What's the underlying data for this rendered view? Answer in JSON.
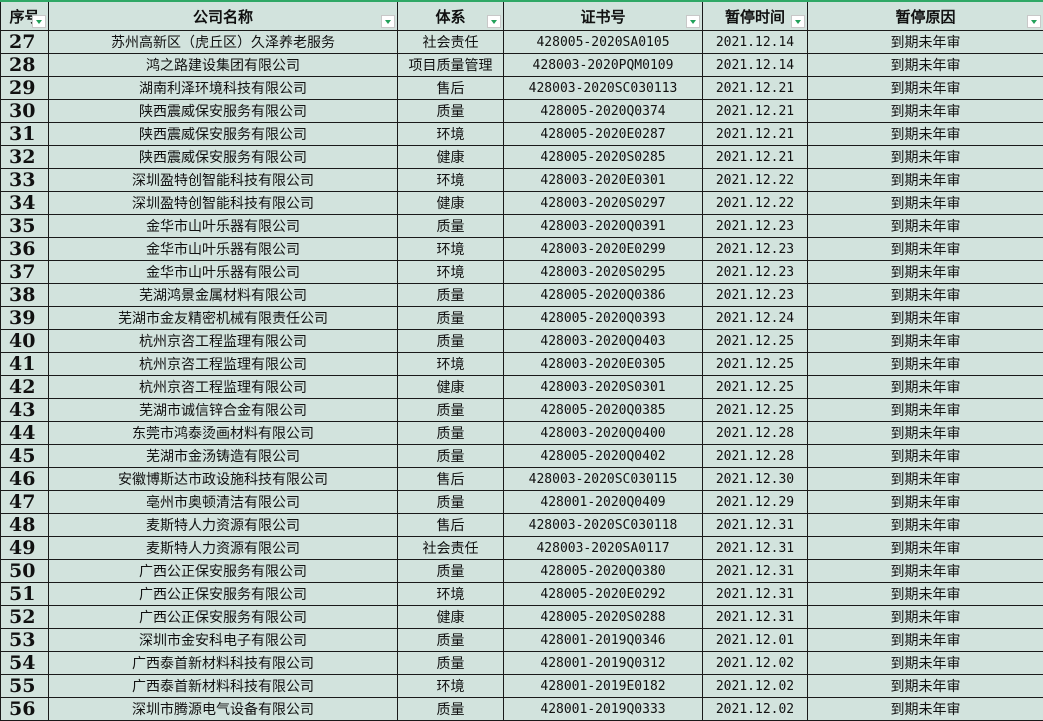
{
  "headers": [
    "序号",
    "公司名称",
    "体系",
    "证书号",
    "暂停时间",
    "暂停原因"
  ],
  "colors": {
    "background": "#d2e3dd",
    "header_top_border": "#2fa866",
    "filter_arrow": "#22a05a"
  },
  "rows": [
    [
      "27",
      "苏州高新区（虎丘区）久泽养老服务",
      "社会责任",
      "428005-2020SA0105",
      "2021.12.14",
      "到期未年审"
    ],
    [
      "28",
      "鸿之路建设集团有限公司",
      "项目质量管理",
      "428003-2020PQM0109",
      "2021.12.14",
      "到期未年审"
    ],
    [
      "29",
      "湖南利泽环境科技有限公司",
      "售后",
      "428003-2020SC030113",
      "2021.12.21",
      "到期未年审"
    ],
    [
      "30",
      "陕西震威保安服务有限公司",
      "质量",
      "428005-2020Q0374",
      "2021.12.21",
      "到期未年审"
    ],
    [
      "31",
      "陕西震威保安服务有限公司",
      "环境",
      "428005-2020E0287",
      "2021.12.21",
      "到期未年审"
    ],
    [
      "32",
      "陕西震威保安服务有限公司",
      "健康",
      "428005-2020S0285",
      "2021.12.21",
      "到期未年审"
    ],
    [
      "33",
      "深圳盈特创智能科技有限公司",
      "环境",
      "428003-2020E0301",
      "2021.12.22",
      "到期未年审"
    ],
    [
      "34",
      "深圳盈特创智能科技有限公司",
      "健康",
      "428003-2020S0297",
      "2021.12.22",
      "到期未年审"
    ],
    [
      "35",
      "金华市山叶乐器有限公司",
      "质量",
      "428003-2020Q0391",
      "2021.12.23",
      "到期未年审"
    ],
    [
      "36",
      "金华市山叶乐器有限公司",
      "环境",
      "428003-2020E0299",
      "2021.12.23",
      "到期未年审"
    ],
    [
      "37",
      "金华市山叶乐器有限公司",
      "环境",
      "428003-2020S0295",
      "2021.12.23",
      "到期未年审"
    ],
    [
      "38",
      "芜湖鸿景金属材料有限公司",
      "质量",
      "428005-2020Q0386",
      "2021.12.23",
      "到期未年审"
    ],
    [
      "39",
      "芜湖市金友精密机械有限责任公司",
      "质量",
      "428005-2020Q0393",
      "2021.12.24",
      "到期未年审"
    ],
    [
      "40",
      "杭州京咨工程监理有限公司",
      "质量",
      "428003-2020Q0403",
      "2021.12.25",
      "到期未年审"
    ],
    [
      "41",
      "杭州京咨工程监理有限公司",
      "环境",
      "428003-2020E0305",
      "2021.12.25",
      "到期未年审"
    ],
    [
      "42",
      "杭州京咨工程监理有限公司",
      "健康",
      "428003-2020S0301",
      "2021.12.25",
      "到期未年审"
    ],
    [
      "43",
      "芜湖市诚信锌合金有限公司",
      "质量",
      "428005-2020Q0385",
      "2021.12.25",
      "到期未年审"
    ],
    [
      "44",
      "东莞市鸿泰烫画材料有限公司",
      "质量",
      "428003-2020Q0400",
      "2021.12.28",
      "到期未年审"
    ],
    [
      "45",
      "芜湖市金汤铸造有限公司",
      "质量",
      "428005-2020Q0402",
      "2021.12.28",
      "到期未年审"
    ],
    [
      "46",
      "安徽博斯达市政设施科技有限公司",
      "售后",
      "428003-2020SC030115",
      "2021.12.30",
      "到期未年审"
    ],
    [
      "47",
      "亳州市奥顿清洁有限公司",
      "质量",
      "428001-2020Q0409",
      "2021.12.29",
      "到期未年审"
    ],
    [
      "48",
      "麦斯特人力资源有限公司",
      "售后",
      "428003-2020SC030118",
      "2021.12.31",
      "到期未年审"
    ],
    [
      "49",
      "麦斯特人力资源有限公司",
      "社会责任",
      "428003-2020SA0117",
      "2021.12.31",
      "到期未年审"
    ],
    [
      "50",
      "广西公正保安服务有限公司",
      "质量",
      "428005-2020Q0380",
      "2021.12.31",
      "到期未年审"
    ],
    [
      "51",
      "广西公正保安服务有限公司",
      "环境",
      "428005-2020E0292",
      "2021.12.31",
      "到期未年审"
    ],
    [
      "52",
      "广西公正保安服务有限公司",
      "健康",
      "428005-2020S0288",
      "2021.12.31",
      "到期未年审"
    ],
    [
      "53",
      "深圳市金安科电子有限公司",
      "质量",
      "428001-2019Q0346",
      "2021.12.01",
      "到期未年审"
    ],
    [
      "54",
      "广西泰首新材料科技有限公司",
      "质量",
      "428001-2019Q0312",
      "2021.12.02",
      "到期未年审"
    ],
    [
      "55",
      "广西泰首新材料科技有限公司",
      "环境",
      "428001-2019E0182",
      "2021.12.02",
      "到期未年审"
    ],
    [
      "56",
      "深圳市腾源电气设备有限公司",
      "质量",
      "428001-2019Q0333",
      "2021.12.02",
      "到期未年审"
    ]
  ]
}
